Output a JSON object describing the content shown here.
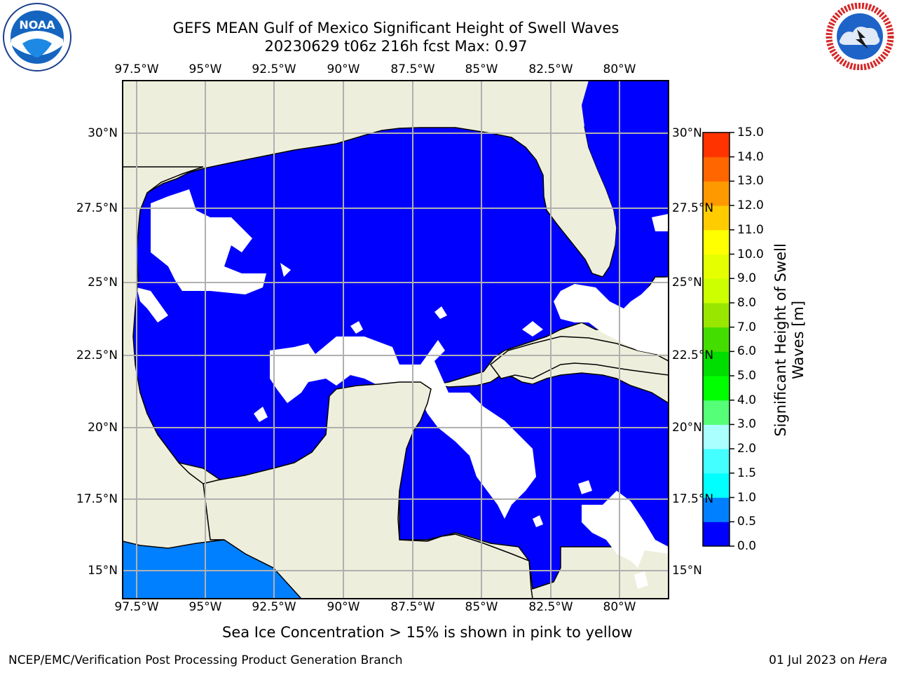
{
  "header": {
    "title": "GEFS MEAN Gulf of Mexico Significant Height of Swell Waves",
    "subtitle": "20230629 t06z 216h fcst   Max: 0.97"
  },
  "logos": {
    "left": {
      "name": "noaa-logo",
      "text": "NOAA"
    },
    "right": {
      "name": "national-weather-service-logo",
      "text": "NATIONAL WEATHER SERVICE"
    }
  },
  "map": {
    "lon_labels": [
      "97.5°W",
      "95°W",
      "92.5°W",
      "90°W",
      "87.5°W",
      "85°W",
      "82.5°W",
      "80°W"
    ],
    "lat_labels": [
      "30°N",
      "27.5°N",
      "25°N",
      "22.5°N",
      "20°N",
      "17.5°N",
      "15°N"
    ],
    "colors": {
      "land": "#eeeedc",
      "swell_low": "#0000ff",
      "swell_0_5": "#0080ff",
      "grid": "#b0b0b0"
    }
  },
  "colorbar": {
    "label": "Significant Height of Swell Waves [m]",
    "label_line1": "Significant Height of Swell",
    "label_line2": "Waves [m]",
    "ticks": [
      "15.0",
      "14.0",
      "13.0",
      "12.0",
      "11.0",
      "10.0",
      "9.0",
      "8.0",
      "7.0",
      "6.0",
      "5.0",
      "4.0",
      "3.0",
      "2.0",
      "1.5",
      "1.0",
      "0.5",
      "0.0"
    ],
    "colors_bottom_to_top": [
      "#0000ff",
      "#0080ff",
      "#00ffff",
      "#44ffff",
      "#aaffff",
      "#55ff77",
      "#00ff00",
      "#00dd00",
      "#44dd00",
      "#99e600",
      "#ccff00",
      "#e6ff00",
      "#ffff00",
      "#ffcc00",
      "#ff9900",
      "#ff6600",
      "#ff3300",
      "#ff0000"
    ]
  },
  "note": "Sea Ice Concentration > 15% is shown in pink to yellow",
  "footer": {
    "left": "NCEP/EMC/Verification Post Processing Product Generation Branch",
    "right_date": "01 Jul 2023 on ",
    "right_machine": "Hera"
  }
}
